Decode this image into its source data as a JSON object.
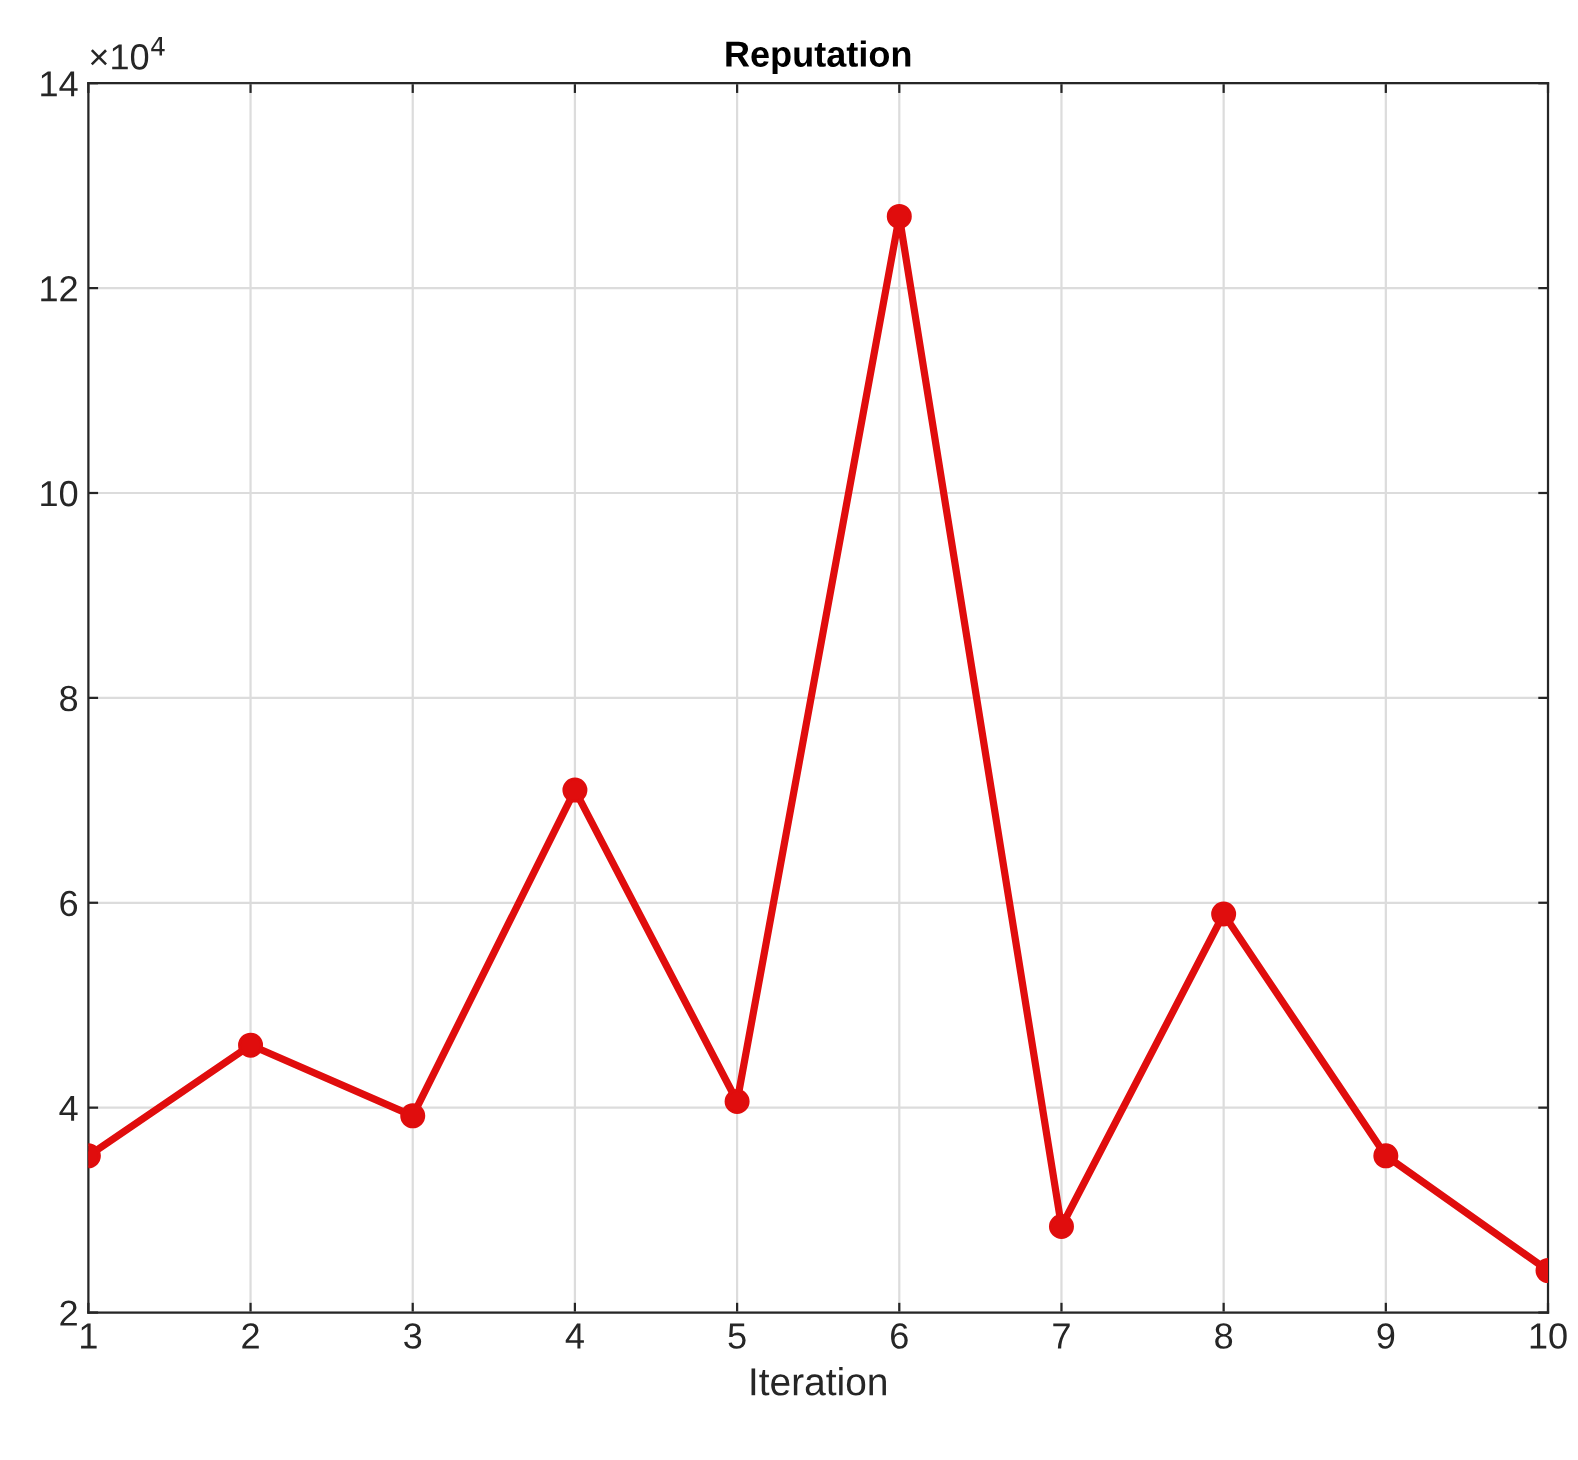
{
  "chart_data": {
    "type": "line",
    "title": "Reputation",
    "xlabel": "Iteration",
    "x": [
      1,
      2,
      3,
      4,
      5,
      6,
      7,
      8,
      9,
      10
    ],
    "series": [
      {
        "color": "#e00d0d",
        "values": [
          3.53,
          4.61,
          3.92,
          7.1,
          4.06,
          12.7,
          2.84,
          5.89,
          3.53,
          2.41
        ]
      }
    ],
    "xlim": [
      1,
      10
    ],
    "xticks": [
      1,
      2,
      3,
      4,
      5,
      6,
      7,
      8,
      9,
      10
    ],
    "ylim": [
      2,
      14
    ],
    "yticks": [
      2,
      4,
      6,
      8,
      10,
      12,
      14
    ],
    "annotations": [
      "×10$^{4}$"
    ],
    "grid": true,
    "marker": "circle",
    "line_style": "solid"
  }
}
